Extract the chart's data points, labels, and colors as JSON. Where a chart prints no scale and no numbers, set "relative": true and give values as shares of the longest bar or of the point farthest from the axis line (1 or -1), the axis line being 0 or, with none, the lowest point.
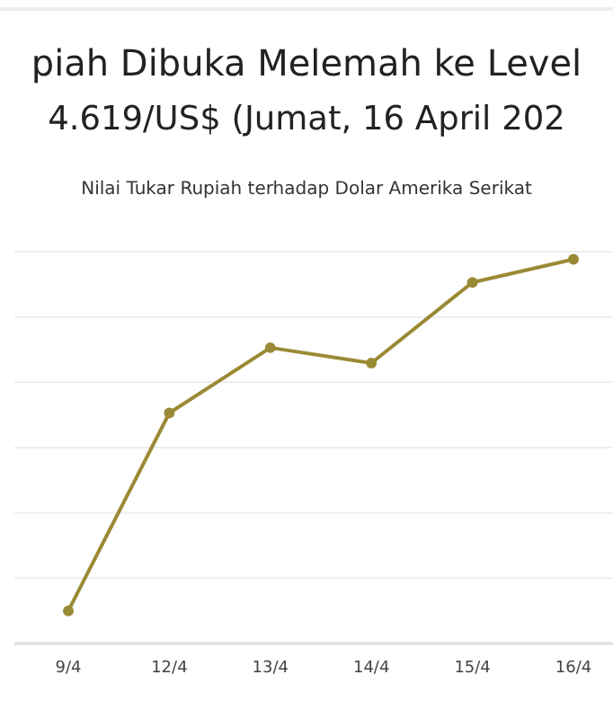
{
  "chart_data": {
    "type": "line",
    "title": "piah Dibuka Melemah ke Level\n4.619/US$ (Jumat, 16 April 202",
    "subtitle": "Nilai Tukar Rupiah terhadap Dolar Amerika Serikat",
    "categories": [
      "9/4",
      "12/4",
      "13/4",
      "14/4",
      "15/4",
      "16/4"
    ],
    "relative": true,
    "grid": true,
    "marker": "circle",
    "series": [
      {
        "color": "#9a8a35",
        "values": [
          0.085,
          0.6,
          0.77,
          0.73,
          0.94,
          1
        ]
      }
    ]
  }
}
